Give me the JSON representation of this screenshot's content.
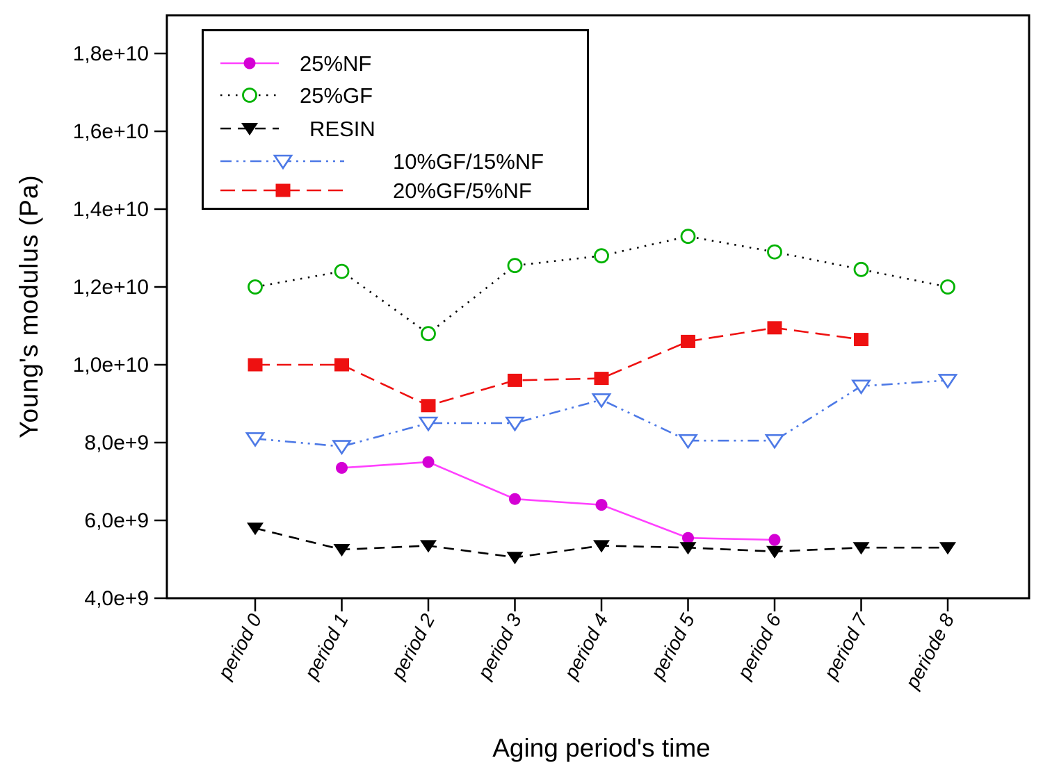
{
  "chart_data": {
    "type": "line",
    "title": "",
    "xlabel": "Aging period's time",
    "ylabel": "Young's modulus (Pa)",
    "grid": false,
    "legend_position": "top-left",
    "categories": [
      "period 0",
      "period 1",
      "period 2",
      "period 3",
      "period 4",
      "period 5",
      "period 6",
      "period 7",
      "periode 8"
    ],
    "ylim": [
      4000000000.0,
      19000000000.0
    ],
    "yticks": [
      {
        "value": 18000000000.0,
        "label": "1,8e+10"
      },
      {
        "value": 16000000000.0,
        "label": "1,6e+10"
      },
      {
        "value": 14000000000.0,
        "label": "1,4e+10"
      },
      {
        "value": 12000000000.0,
        "label": "1,2e+10"
      },
      {
        "value": 10000000000.0,
        "label": "1,0e+10"
      },
      {
        "value": 8000000000.0,
        "label": "8,0e+9"
      },
      {
        "value": 6000000000.0,
        "label": "6,0e+9"
      },
      {
        "value": 4000000000.0,
        "label": "4,0e+9"
      }
    ],
    "series": [
      {
        "name": "25%NF",
        "marker": "filled-circle",
        "marker_color": "#d400d4",
        "line_color": "#ff40ff",
        "line_style": "solid",
        "legend_sample": "short",
        "values": [
          null,
          7350000000.0,
          7500000000.0,
          6550000000.0,
          6400000000.0,
          5550000000.0,
          5500000000.0,
          null,
          null
        ]
      },
      {
        "name": "25%GF",
        "marker": "open-circle",
        "marker_color": "#00b200",
        "line_color": "#000000",
        "line_style": "dotted",
        "legend_sample": "short",
        "values": [
          12000000000.0,
          12400000000.0,
          10800000000.0,
          12550000000.0,
          12800000000.0,
          13300000000.0,
          12900000000.0,
          12450000000.0,
          12000000000.0
        ]
      },
      {
        "name": "RESIN",
        "marker": "filled-triangle-down",
        "marker_color": "#000000",
        "line_color": "#000000",
        "line_style": "dashed",
        "legend_sample": "short",
        "values": [
          5800000000.0,
          5250000000.0,
          5350000000.0,
          5050000000.0,
          5350000000.0,
          5300000000.0,
          5200000000.0,
          5300000000.0,
          5300000000.0
        ]
      },
      {
        "name": "10%GF/15%NF",
        "marker": "open-triangle-down",
        "marker_color": "#4d79e6",
        "line_color": "#4d79e6",
        "line_style": "dash-dot-dot",
        "legend_sample": "long",
        "values": [
          8100000000.0,
          7900000000.0,
          8500000000.0,
          8500000000.0,
          9100000000.0,
          8050000000.0,
          8050000000.0,
          9450000000.0,
          9600000000.0
        ]
      },
      {
        "name": "20%GF/5%NF",
        "marker": "filled-square",
        "marker_color": "#ee1111",
        "line_color": "#ee1111",
        "line_style": "long-dash",
        "legend_sample": "long",
        "values": [
          10000000000.0,
          10000000000.0,
          8950000000.0,
          9600000000.0,
          9650000000.0,
          10600000000.0,
          10950000000.0,
          10650000000.0,
          null
        ]
      }
    ]
  }
}
